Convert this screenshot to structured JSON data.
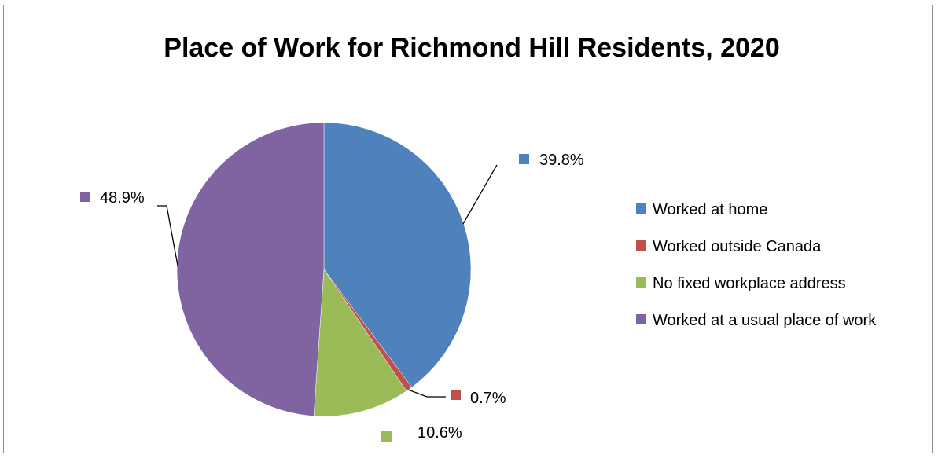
{
  "chart_data": {
    "type": "pie",
    "title": "Place of Work for Richmond Hill Residents, 2020",
    "legend_position": "right",
    "slices": [
      {
        "name": "Worked at home",
        "value": 39.8,
        "label": "39.8%",
        "color": "#4F81BD"
      },
      {
        "name": "Worked outside Canada",
        "value": 0.7,
        "label": "0.7%",
        "color": "#C0504D"
      },
      {
        "name": "No fixed workplace address",
        "value": 10.6,
        "label": "10.6%",
        "color": "#9BBB59"
      },
      {
        "name": "Worked at a usual place of work",
        "value": 48.9,
        "label": "48.9%",
        "color": "#8064A2"
      }
    ]
  }
}
